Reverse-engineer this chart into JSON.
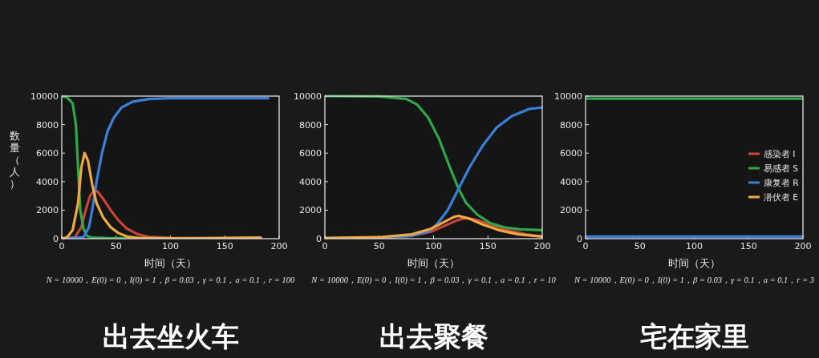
{
  "chart_data": [
    {
      "type": "line",
      "title": "出去坐火车",
      "xlabel": "时间（天）",
      "ylabel": "数量（人）",
      "annotations": [
        "N = 10000，E(0) = 0，I(0) = 1，β = 0.03，γ = 0.1，a = 0.1，r = 100"
      ],
      "xlim": [
        0,
        200
      ],
      "ylim": [
        0,
        10000
      ],
      "xticks": [
        0,
        50,
        100,
        150,
        200
      ],
      "yticks": [
        0,
        2000,
        4000,
        6000,
        8000,
        10000
      ],
      "legend": false,
      "line_style": "solid",
      "series": [
        {
          "color": "#c8453c",
          "x": [
            0,
            12,
            18,
            22,
            26,
            30,
            33,
            38,
            45,
            52,
            60,
            70,
            80,
            100,
            140,
            183
          ],
          "values": [
            0,
            100,
            800,
            2000,
            3000,
            3400,
            3300,
            2800,
            2000,
            1300,
            700,
            300,
            120,
            50,
            20,
            50
          ]
        },
        {
          "color": "#2ea84a",
          "x": [
            0,
            5,
            10,
            13,
            15,
            17,
            20,
            23,
            27,
            40,
            60,
            100
          ],
          "values": [
            10000,
            9900,
            9500,
            8000,
            5000,
            2000,
            700,
            200,
            80,
            50,
            40,
            30
          ]
        },
        {
          "color": "#3b7fd9",
          "x": [
            0,
            20,
            25,
            28,
            32,
            37,
            42,
            48,
            55,
            65,
            80,
            100,
            190
          ],
          "values": [
            0,
            100,
            800,
            2000,
            4000,
            6000,
            7500,
            8500,
            9200,
            9600,
            9800,
            9850,
            9850
          ]
        },
        {
          "color": "#f0a840",
          "x": [
            0,
            5,
            10,
            15,
            18,
            21,
            24,
            28,
            32,
            38,
            45,
            52,
            60,
            70,
            100,
            150,
            183
          ],
          "values": [
            0,
            100,
            600,
            2500,
            5000,
            6000,
            5500,
            3800,
            2500,
            1500,
            800,
            400,
            150,
            50,
            20,
            50,
            80
          ]
        }
      ]
    },
    {
      "type": "line",
      "title": "出去聚餐",
      "xlabel": "时间（天）",
      "annotations": [
        "N = 10000，E(0) = 0，I(0) = 1，β = 0.03，γ = 0.1，a = 0.1，r = 10"
      ],
      "xlim": [
        0,
        200
      ],
      "ylim": [
        0,
        10000
      ],
      "xticks": [
        0,
        50,
        100,
        150,
        200
      ],
      "yticks": [
        0,
        2000,
        4000,
        6000,
        8000,
        10000
      ],
      "legend": false,
      "line_style": "solid",
      "series": [
        {
          "color": "#c8453c",
          "x": [
            0,
            50,
            80,
            98,
            110,
            122,
            130,
            140,
            152,
            168,
            185,
            200
          ],
          "values": [
            0,
            50,
            200,
            500,
            900,
            1300,
            1450,
            1300,
            1000,
            600,
            300,
            150
          ]
        },
        {
          "color": "#2ea84a",
          "x": [
            0,
            50,
            75,
            85,
            95,
            105,
            115,
            123,
            130,
            140,
            152,
            165,
            180,
            200
          ],
          "values": [
            10000,
            9980,
            9800,
            9400,
            8500,
            7000,
            5000,
            3500,
            2500,
            1700,
            1100,
            800,
            650,
            600
          ]
        },
        {
          "color": "#3b7fd9",
          "x": [
            0,
            50,
            80,
            95,
            103,
            113,
            123,
            133,
            145,
            158,
            172,
            188,
            200
          ],
          "values": [
            0,
            50,
            200,
            500,
            1000,
            2000,
            3500,
            5000,
            6500,
            7800,
            8600,
            9100,
            9200
          ]
        },
        {
          "color": "#f0a840",
          "x": [
            0,
            50,
            80,
            98,
            108,
            118,
            123,
            133,
            145,
            160,
            178,
            200
          ],
          "values": [
            50,
            100,
            300,
            700,
            1100,
            1500,
            1600,
            1400,
            1000,
            600,
            300,
            150
          ]
        }
      ]
    },
    {
      "type": "line",
      "title": "宅在家里",
      "xlabel": "时间（天）",
      "annotations": [
        "N = 10000，E(0) = 0，I(0) = 1，β = 0.03，γ = 0.1，a = 0.1，r = 3"
      ],
      "xlim": [
        0,
        200
      ],
      "ylim": [
        0,
        10000
      ],
      "xticks": [
        0,
        50,
        100,
        150,
        200
      ],
      "yticks": [
        0,
        2000,
        4000,
        6000,
        8000,
        10000
      ],
      "legend": "right",
      "line_style": "solid",
      "series": [
        {
          "name": "感染者 I",
          "color": "#c8453c",
          "values": [
            null,
            null
          ]
        },
        {
          "name": "易感者 S",
          "color": "#2ea84a",
          "x": [
            0,
            200
          ],
          "values": [
            9820,
            9820
          ]
        },
        {
          "name": "康复者 R",
          "color": "#3b7fd9",
          "x": [
            0,
            200
          ],
          "values": [
            150,
            150
          ]
        },
        {
          "name": "潜伏者 E",
          "color": "#f0a840",
          "values": [
            null,
            null
          ]
        }
      ]
    }
  ]
}
